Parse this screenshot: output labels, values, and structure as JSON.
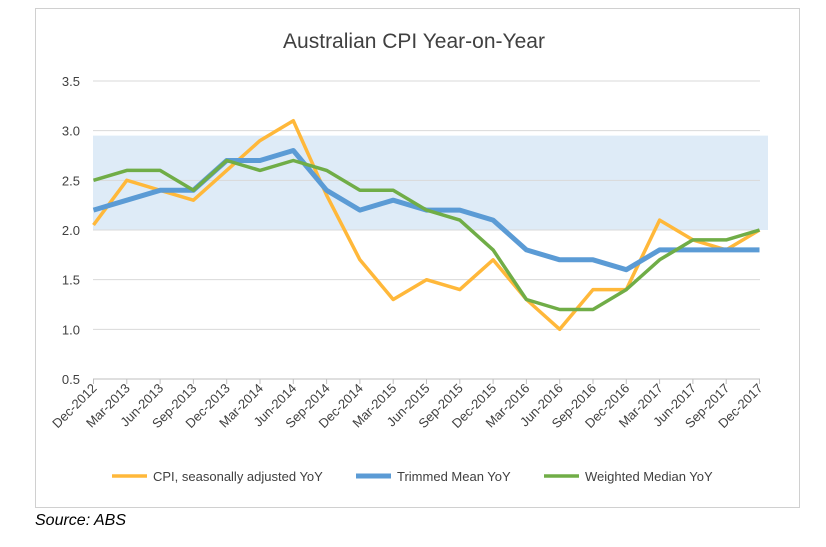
{
  "chart_data": {
    "type": "line",
    "title": "Australian CPI  Year-on-Year",
    "xlabel": "",
    "ylabel": "",
    "categories": [
      "Dec-2012",
      "Mar-2013",
      "Jun-2013",
      "Sep-2013",
      "Dec-2013",
      "Mar-2014",
      "Jun-2014",
      "Sep-2014",
      "Dec-2014",
      "Mar-2015",
      "Jun-2015",
      "Sep-2015",
      "Dec-2015",
      "Mar-2016",
      "Jun-2016",
      "Sep-2016",
      "Dec-2016",
      "Mar-2017",
      "Jun-2017",
      "Sep-2017",
      "Dec-2017"
    ],
    "ylim": [
      0.5,
      3.5
    ],
    "yticks": [
      "0.5",
      "1.0",
      "1.5",
      "2.0",
      "2.5",
      "3.0",
      "3.5"
    ],
    "ytick_values": [
      0.5,
      1.0,
      1.5,
      2.0,
      2.5,
      3.0,
      3.5
    ],
    "target_band": [
      2.0,
      2.95
    ],
    "grid": true,
    "legend_position": "bottom",
    "series": [
      {
        "name": "CPI, seasonally adjusted YoY",
        "color": "#FFB83A",
        "values": [
          2.05,
          2.5,
          2.4,
          2.3,
          2.6,
          2.9,
          3.1,
          2.35,
          1.7,
          1.3,
          1.5,
          1.4,
          1.7,
          1.3,
          1.0,
          1.4,
          1.4,
          2.1,
          1.9,
          1.8,
          2.0
        ]
      },
      {
        "name": "Trimmed Mean YoY",
        "color": "#5B9BD5",
        "values": [
          2.2,
          2.3,
          2.4,
          2.4,
          2.7,
          2.7,
          2.8,
          2.4,
          2.2,
          2.3,
          2.2,
          2.2,
          2.1,
          1.8,
          1.7,
          1.7,
          1.6,
          1.8,
          1.8,
          1.8,
          1.8
        ]
      },
      {
        "name": "Weighted Median YoY",
        "color": "#70AD47",
        "values": [
          2.5,
          2.6,
          2.6,
          2.4,
          2.7,
          2.6,
          2.7,
          2.6,
          2.4,
          2.4,
          2.2,
          2.1,
          1.8,
          1.3,
          1.2,
          1.2,
          1.4,
          1.7,
          1.9,
          1.9,
          2.0
        ]
      }
    ]
  },
  "colors": {
    "band": "#DEEBF7",
    "grid": "#D9D9D9",
    "axis": "#BFBFBF",
    "text": "#404040"
  },
  "source": "Source: ABS"
}
